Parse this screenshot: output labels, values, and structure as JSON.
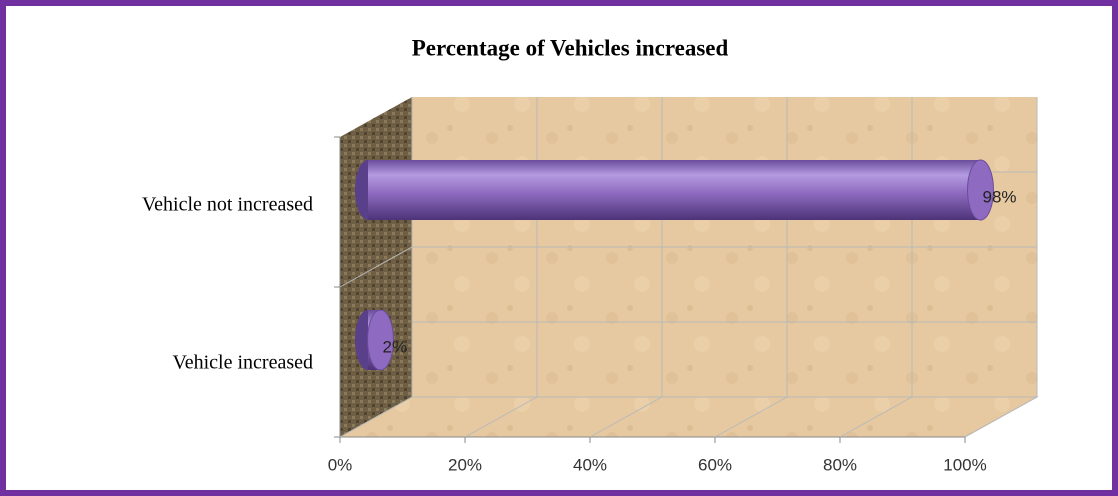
{
  "chart_data": {
    "type": "bar",
    "orientation": "horizontal",
    "title": "Percentage of Vehicles  increased",
    "categories": [
      "Vehicle not increased",
      "Vehicle increased"
    ],
    "values": [
      98,
      2
    ],
    "value_labels": [
      "98%",
      "2%"
    ],
    "color": "#8e6bc0",
    "xlim": [
      0,
      100
    ],
    "xticks": [
      {
        "value": 0,
        "label": "0%"
      },
      {
        "value": 20,
        "label": "20%"
      },
      {
        "value": 40,
        "label": "40%"
      },
      {
        "value": 60,
        "label": "60%"
      },
      {
        "value": 80,
        "label": "80%"
      },
      {
        "value": 100,
        "label": "100%"
      }
    ],
    "grid": true
  }
}
